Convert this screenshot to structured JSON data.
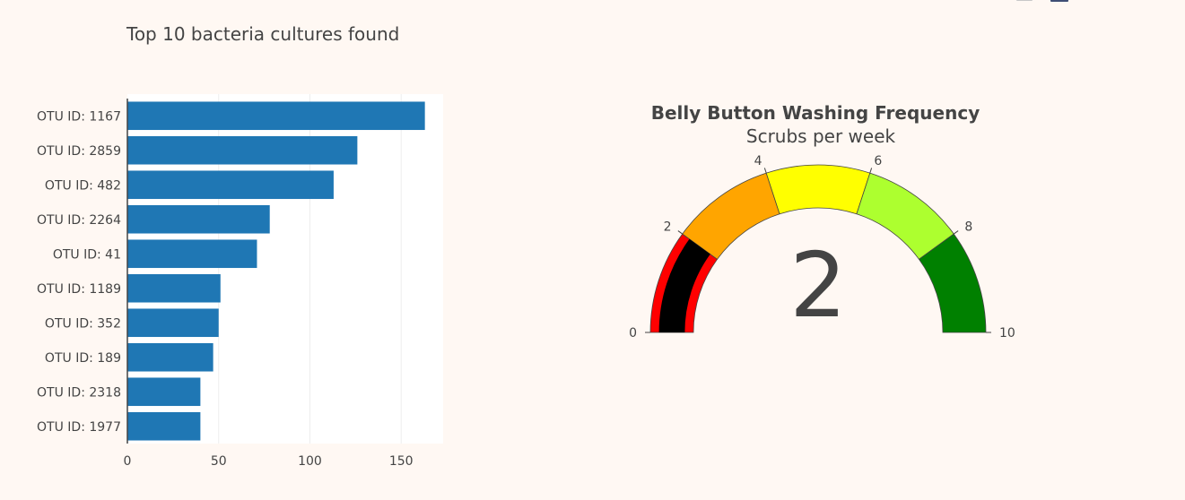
{
  "chart_data": [
    {
      "type": "bar",
      "orientation": "horizontal",
      "title": "Top 10 bacteria cultures found",
      "categories": [
        "OTU ID: 1167",
        "OTU ID: 2859",
        "OTU ID: 482",
        "OTU ID: 2264",
        "OTU ID: 41",
        "OTU ID: 1189",
        "OTU ID: 352",
        "OTU ID: 189",
        "OTU ID: 2318",
        "OTU ID: 1977"
      ],
      "values": [
        163,
        126,
        113,
        78,
        71,
        51,
        50,
        47,
        40,
        40
      ],
      "xlim": [
        0,
        173
      ],
      "xticks": [
        0,
        50,
        100,
        150
      ],
      "bar_color": "#1f77b4",
      "grid": true
    },
    {
      "type": "gauge",
      "title": "Belly Button Washing Frequency",
      "subtitle": "Scrubs per week",
      "value": 2,
      "range": [
        0,
        10
      ],
      "ticks": [
        0,
        2,
        4,
        6,
        8,
        10
      ],
      "bar_color": "#000000",
      "steps": [
        {
          "range": [
            0,
            2
          ],
          "color": "#ff0000"
        },
        {
          "range": [
            2,
            4
          ],
          "color": "#ffa500"
        },
        {
          "range": [
            4,
            6
          ],
          "color": "#ffff00"
        },
        {
          "range": [
            6,
            8
          ],
          "color": "#adff2f"
        },
        {
          "range": [
            8,
            10
          ],
          "color": "#008000"
        }
      ]
    }
  ],
  "modebar": {
    "icons": [
      "camera-icon",
      "plotly-logo-icon"
    ],
    "colors": {
      "camera": "#c8c8c8",
      "logo": "#3f4f75"
    }
  }
}
